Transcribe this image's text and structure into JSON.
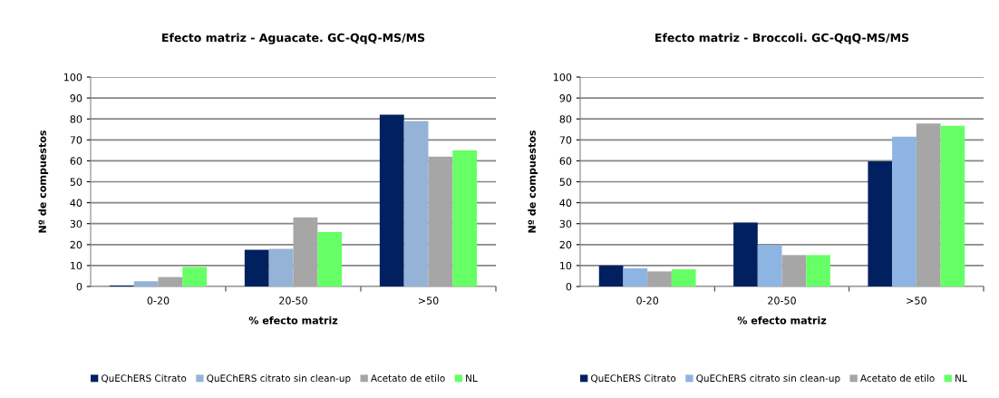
{
  "chart_data": [
    {
      "type": "bar",
      "title": "Efecto matriz - Aguacate. GC-QqQ-MS/MS",
      "xlabel": "% efecto matriz",
      "ylabel": "Nº de compuestos",
      "categories": [
        "0-20",
        "20-50",
        ">50"
      ],
      "series": [
        {
          "name": "QuEChERS Citrato",
          "color": "#002060",
          "values": [
            0.5,
            17.5,
            82
          ]
        },
        {
          "name": "QuEChERS citrato sin clean-up",
          "color": "#95b3d7",
          "values": [
            2.5,
            18,
            79
          ]
        },
        {
          "name": "Acetato de etilo",
          "color": "#a6a6a6",
          "values": [
            4.5,
            33,
            62
          ]
        },
        {
          "name": "NL",
          "color": "#66ff66",
          "values": [
            9.3,
            26,
            65
          ]
        }
      ],
      "ylim": [
        0,
        100
      ],
      "yticks": [
        0,
        10,
        20,
        30,
        40,
        50,
        60,
        70,
        80,
        90,
        100
      ],
      "grid": "y",
      "legend": "bottom"
    },
    {
      "type": "bar",
      "title": "Efecto matriz - Broccoli. GC-QqQ-MS/MS",
      "xlabel": "% efecto matriz",
      "ylabel": "Nº de compuestos",
      "categories": [
        "0-20",
        "20-50",
        ">50"
      ],
      "series": [
        {
          "name": "QuEChERS Citrato",
          "color": "#002060",
          "values": [
            10,
            30.5,
            59.7
          ]
        },
        {
          "name": "QuEChERS citrato sin clean-up",
          "color": "#8db4e2",
          "values": [
            8.7,
            19.8,
            71.5
          ]
        },
        {
          "name": "Acetato de etilo",
          "color": "#a6a6a6",
          "values": [
            7.2,
            15,
            77.8
          ]
        },
        {
          "name": "NL",
          "color": "#66ff66",
          "values": [
            8.2,
            15,
            76.7
          ]
        }
      ],
      "ylim": [
        0,
        100
      ],
      "yticks": [
        0,
        10,
        20,
        30,
        40,
        50,
        60,
        70,
        80,
        90,
        100
      ],
      "grid": "y",
      "legend": "bottom"
    }
  ]
}
